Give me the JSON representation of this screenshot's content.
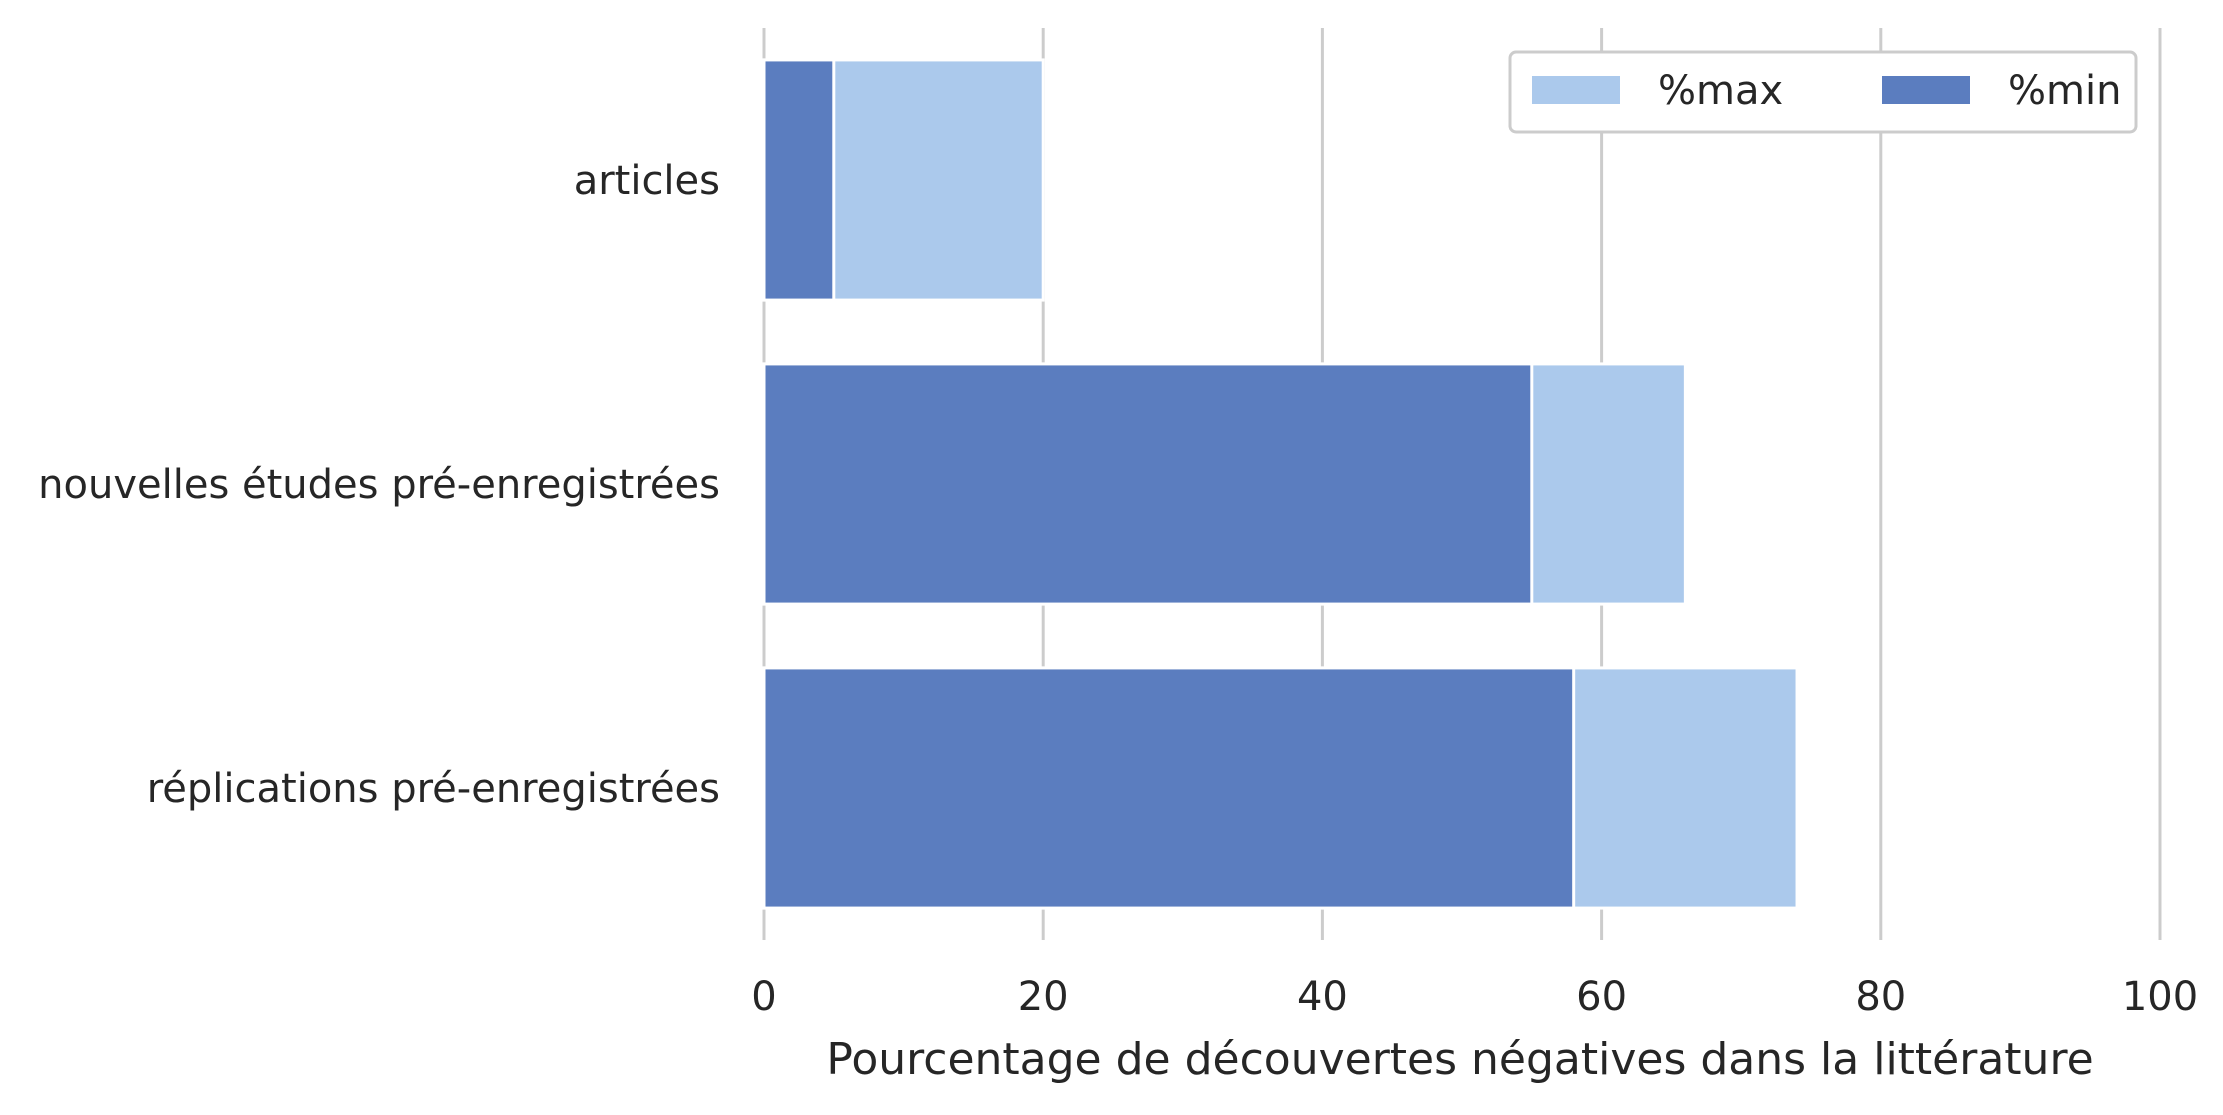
{
  "chart_data": {
    "type": "bar",
    "orientation": "horizontal",
    "stacked": false,
    "overlaid": true,
    "categories": [
      "articles",
      "nouvelles études pré-enregistrées",
      "réplications pré-enregistrées"
    ],
    "series": [
      {
        "name": "%max",
        "values": [
          20,
          66,
          74
        ],
        "color": "#abc9ec"
      },
      {
        "name": "%min",
        "values": [
          5,
          55,
          58
        ],
        "color": "#5b7dbf"
      }
    ],
    "xlabel": "Pourcentage de découvertes négatives dans la littérature",
    "ylabel": "",
    "xlim": [
      0,
      100
    ],
    "xticks": [
      0,
      20,
      40,
      60,
      80,
      100
    ],
    "grid": "vertical",
    "legend": {
      "placement": "top-right",
      "entries": [
        "%max",
        "%min"
      ]
    },
    "colors": {
      "grid": "#cccccc",
      "text": "#262626",
      "background": "#ffffff"
    }
  }
}
